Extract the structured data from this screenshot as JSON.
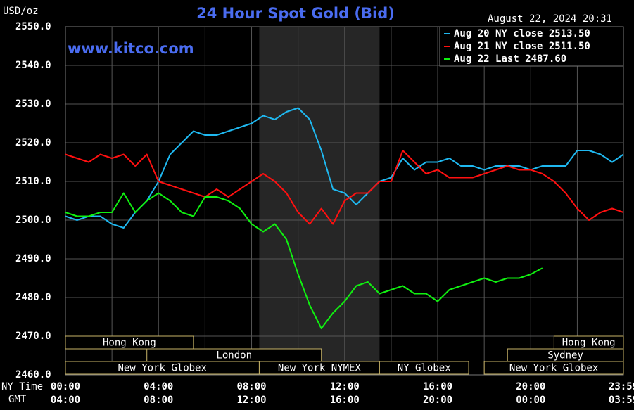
{
  "chart_data": {
    "type": "line",
    "title": "24 Hour Spot Gold (Bid)",
    "y_unit": "USD/oz",
    "timestamp": "August 22, 2024 20:31",
    "watermark": "www.kitco.com",
    "x_row_labels": [
      "NY Time",
      "GMT"
    ],
    "x": [
      0,
      0.5,
      1,
      1.5,
      2,
      2.5,
      3,
      3.5,
      4,
      4.5,
      5,
      5.5,
      6,
      6.5,
      7,
      7.5,
      8,
      8.5,
      9,
      9.5,
      10,
      10.5,
      11,
      11.5,
      12,
      12.5,
      13,
      13.5,
      14,
      14.5,
      15,
      15.5,
      16,
      16.5,
      17,
      17.5,
      18,
      18.5,
      19,
      19.5,
      20,
      20.5,
      21,
      21.5,
      22,
      22.5,
      23,
      23.5,
      23.983
    ],
    "series": [
      {
        "name": "Aug 20 NY close 2513.50",
        "color": "#1fb8f0",
        "values": [
          2501,
          2500,
          2501,
          2501,
          2499,
          2498,
          2502,
          2505,
          2510,
          2517,
          2520,
          2523,
          2522,
          2522,
          2523,
          2524,
          2525,
          2527,
          2526,
          2528,
          2529,
          2526,
          2518,
          2508,
          2507,
          2504,
          2507,
          2510,
          2511,
          2516,
          2513,
          2515,
          2515,
          2516,
          2514,
          2514,
          2513,
          2514,
          2514,
          2514,
          2513,
          2514,
          2514,
          2514,
          2518,
          2518,
          2517,
          2515,
          2517
        ]
      },
      {
        "name": "Aug 21 NY close 2511.50",
        "color": "#ff1010",
        "values": [
          2517,
          2516,
          2515,
          2517,
          2516,
          2517,
          2514,
          2517,
          2510,
          2509,
          2508,
          2507,
          2506,
          2508,
          2506,
          2508,
          2510,
          2512,
          2510,
          2507,
          2502,
          2499,
          2503,
          2499,
          2505,
          2507,
          2507,
          2510,
          2510,
          2518,
          2515,
          2512,
          2513,
          2511,
          2511,
          2511,
          2512,
          2513,
          2514,
          2513,
          2513,
          2512,
          2510,
          2507,
          2503,
          2500,
          2502,
          2503,
          2502
        ]
      },
      {
        "name": "Aug 22 Last 2487.60",
        "color": "#10f010",
        "values": [
          2502,
          2501,
          2501,
          2502,
          2502,
          2507,
          2502,
          2505,
          2507,
          2505,
          2502,
          2501,
          2506,
          2506,
          2505,
          2503,
          2499,
          2497,
          2499,
          2495,
          2486,
          2478,
          2472,
          2476,
          2479,
          2483,
          2484,
          2481,
          2482,
          2483,
          2481,
          2481,
          2479,
          2482,
          2483,
          2484,
          2485,
          2484,
          2485,
          2485,
          2486,
          2487.6,
          null,
          null,
          null,
          null,
          null,
          null,
          null
        ]
      }
    ],
    "xlim": [
      0,
      23.983
    ],
    "xticks": [
      {
        "value": 0,
        "label": "00:00"
      },
      {
        "value": 4,
        "label": "04:00"
      },
      {
        "value": 8,
        "label": "08:00"
      },
      {
        "value": 12,
        "label": "12:00"
      },
      {
        "value": 16,
        "label": "16:00"
      },
      {
        "value": 20,
        "label": "20:00"
      },
      {
        "value": 23.983,
        "label": "23:59"
      }
    ],
    "x2ticks": [
      {
        "value": 0,
        "label": "04:00"
      },
      {
        "value": 4,
        "label": "08:00"
      },
      {
        "value": 8,
        "label": "12:00"
      },
      {
        "value": 12,
        "label": "16:00"
      },
      {
        "value": 16,
        "label": "20:00"
      },
      {
        "value": 20,
        "label": "00:00"
      },
      {
        "value": 23.983,
        "label": "03:59"
      }
    ],
    "xminorticks": [
      2,
      6,
      10,
      14,
      18,
      22
    ],
    "ylim": [
      2460,
      2550
    ],
    "yticks": [
      {
        "value": 2460,
        "label": "2460.0"
      },
      {
        "value": 2470,
        "label": "2470.0"
      },
      {
        "value": 2480,
        "label": "2480.0"
      },
      {
        "value": 2490,
        "label": "2490.0"
      },
      {
        "value": 2500,
        "label": "2500.0"
      },
      {
        "value": 2510,
        "label": "2510.0"
      },
      {
        "value": 2520,
        "label": "2520.0"
      },
      {
        "value": 2530,
        "label": "2530.0"
      },
      {
        "value": 2540,
        "label": "2540.0"
      },
      {
        "value": 2550,
        "label": "2550.0"
      }
    ],
    "grid": true,
    "legend": "top-right",
    "sessions": [
      [
        {
          "label": "Hong Kong",
          "start": 0,
          "end": 5.5
        },
        {
          "label": "Hong Kong",
          "start": 21,
          "end": 23.983
        }
      ],
      [
        {
          "label": "London",
          "start": 3.5,
          "end": 11
        },
        {
          "label": "Sydney",
          "start": 19,
          "end": 23.983
        }
      ],
      [
        {
          "label": "New York Globex",
          "start": 0,
          "end": 8.33
        },
        {
          "label": "New York NYMEX",
          "start": 8.33,
          "end": 13.5
        },
        {
          "label": "NY Globex",
          "start": 13.5,
          "end": 17.33
        },
        {
          "label": "New York Globex",
          "start": 18,
          "end": 23.983
        }
      ]
    ],
    "highlight_session": [
      2,
      1
    ]
  }
}
